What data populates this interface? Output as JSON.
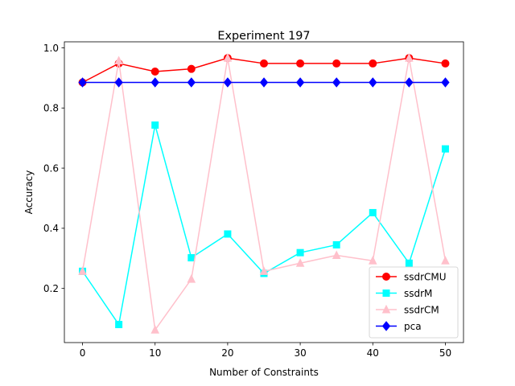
{
  "chart_data": {
    "type": "line",
    "title": "Experiment 197",
    "xlabel": "Number of Constraints",
    "ylabel": "Accuracy",
    "x": [
      0,
      5,
      10,
      15,
      20,
      25,
      30,
      35,
      40,
      45,
      50
    ],
    "xticks": [
      "0",
      "10",
      "20",
      "30",
      "40",
      "50"
    ],
    "yticks": [
      "0.2",
      "0.4",
      "0.6",
      "0.8",
      "1.0"
    ],
    "xlim": [
      -2.5,
      52.5
    ],
    "ylim": [
      0.02,
      1.02
    ],
    "grid": false,
    "legend_position": "lower-right",
    "series": [
      {
        "name": "ssdrCMU",
        "color": "#ff0000",
        "marker": "circle",
        "values": [
          0.885,
          0.948,
          0.921,
          0.93,
          0.966,
          0.948,
          0.948,
          0.948,
          0.948,
          0.966,
          0.948
        ]
      },
      {
        "name": "ssdrM",
        "color": "#00ffff",
        "marker": "square",
        "values": [
          0.257,
          0.08,
          0.743,
          0.302,
          0.381,
          0.25,
          0.319,
          0.345,
          0.452,
          0.284,
          0.664
        ]
      },
      {
        "name": "ssdrCM",
        "color": "#ffc0cb",
        "marker": "triangle",
        "values": [
          0.257,
          0.957,
          0.062,
          0.231,
          0.966,
          0.257,
          0.284,
          0.31,
          0.292,
          0.966,
          0.292
        ]
      },
      {
        "name": "pca",
        "color": "#0000ff",
        "marker": "diamond",
        "values": [
          0.885,
          0.885,
          0.885,
          0.885,
          0.885,
          0.885,
          0.885,
          0.885,
          0.885,
          0.885,
          0.885
        ]
      }
    ]
  }
}
